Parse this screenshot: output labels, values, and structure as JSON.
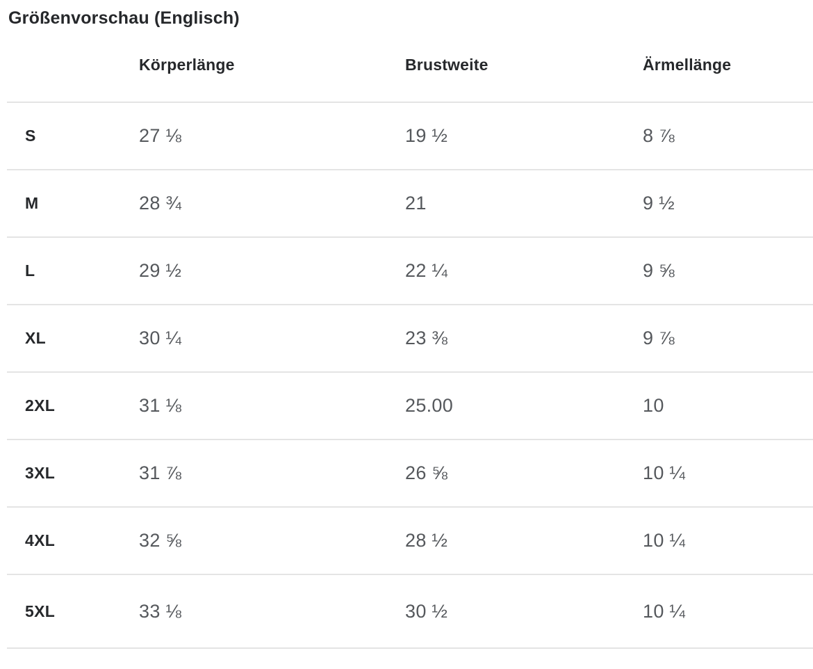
{
  "title": "Größenvorschau (Englisch)",
  "table": {
    "columns": {
      "size": "",
      "body_length": "Körperlänge",
      "chest_width": "Brustweite",
      "sleeve_length": "Ärmellänge"
    },
    "rows": [
      {
        "size": "S",
        "body_length": "27 ⅛",
        "chest_width": "19 ½",
        "sleeve_length": "8 ⅞"
      },
      {
        "size": "M",
        "body_length": "28 ¾",
        "chest_width": "21",
        "sleeve_length": "9 ½"
      },
      {
        "size": "L",
        "body_length": "29 ½",
        "chest_width": "22 ¼",
        "sleeve_length": "9 ⅝"
      },
      {
        "size": "XL",
        "body_length": "30 ¼",
        "chest_width": "23 ⅜",
        "sleeve_length": "9 ⅞"
      },
      {
        "size": "2XL",
        "body_length": "31 ⅛",
        "chest_width": "25.00",
        "sleeve_length": "10"
      },
      {
        "size": "3XL",
        "body_length": "31 ⅞",
        "chest_width": "26 ⅝",
        "sleeve_length": "10 ¼"
      },
      {
        "size": "4XL",
        "body_length": "32 ⅝",
        "chest_width": "28 ½",
        "sleeve_length": "10 ¼"
      },
      {
        "size": "5XL",
        "body_length": "33 ⅛",
        "chest_width": "30 ½",
        "sleeve_length": "10 ¼"
      }
    ]
  },
  "colors": {
    "heading_text": "#26282b",
    "value_text": "#55585c",
    "divider": "#e4e4e4",
    "background": "#ffffff"
  }
}
